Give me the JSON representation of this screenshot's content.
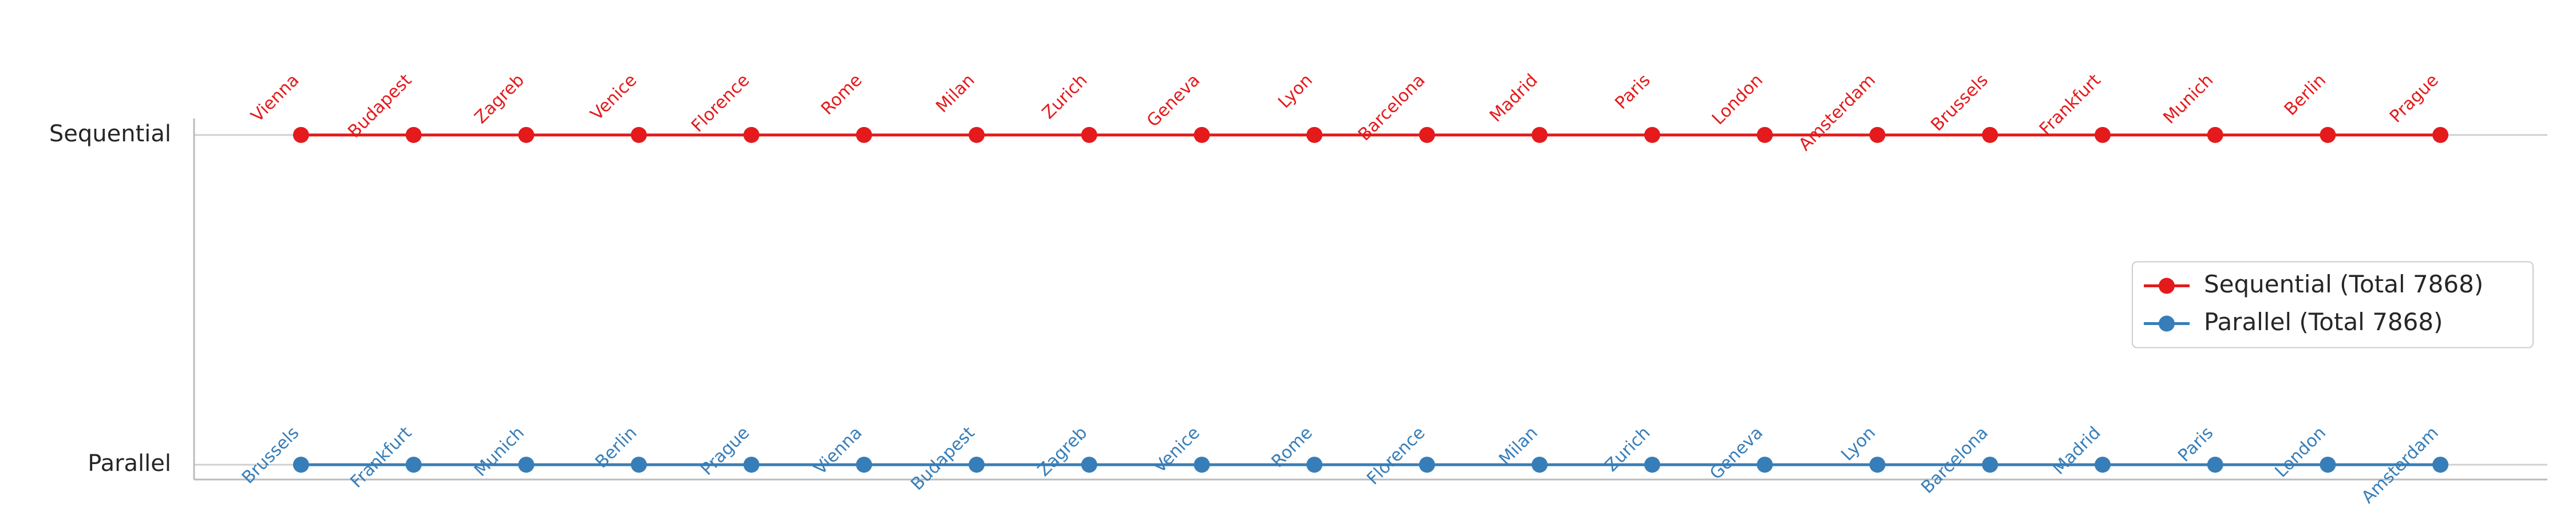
{
  "chart_data": {
    "type": "line",
    "x": [
      0,
      1,
      2,
      3,
      4,
      5,
      6,
      7,
      8,
      9,
      10,
      11,
      12,
      13,
      14,
      15,
      16,
      17,
      18,
      19
    ],
    "xlim": [
      -0.95,
      19.95
    ],
    "ylim": [
      -0.045,
      1.05
    ],
    "yticks": [
      {
        "value": 0,
        "label": "Parallel"
      },
      {
        "value": 1,
        "label": "Sequential"
      }
    ],
    "grid": true,
    "legend": "center right",
    "series": [
      {
        "name": "Sequential (Total 7868)",
        "color": "#e41a1c",
        "values": [
          1,
          1,
          1,
          1,
          1,
          1,
          1,
          1,
          1,
          1,
          1,
          1,
          1,
          1,
          1,
          1,
          1,
          1,
          1,
          1
        ],
        "point_labels": [
          "Vienna",
          "Budapest",
          "Zagreb",
          "Venice",
          "Florence",
          "Rome",
          "Milan",
          "Zurich",
          "Geneva",
          "Lyon",
          "Barcelona",
          "Madrid",
          "Paris",
          "London",
          "Amsterdam",
          "Brussels",
          "Frankfurt",
          "Munich",
          "Berlin",
          "Prague"
        ]
      },
      {
        "name": "Parallel (Total 7868)",
        "color": "#377eb8",
        "values": [
          0,
          0,
          0,
          0,
          0,
          0,
          0,
          0,
          0,
          0,
          0,
          0,
          0,
          0,
          0,
          0,
          0,
          0,
          0,
          0
        ],
        "point_labels": [
          "Brussels",
          "Frankfurt",
          "Munich",
          "Berlin",
          "Prague",
          "Vienna",
          "Budapest",
          "Zagreb",
          "Venice",
          "Rome",
          "Florence",
          "Milan",
          "Zurich",
          "Geneva",
          "Lyon",
          "Barcelona",
          "Madrid",
          "Paris",
          "London",
          "Amsterdam"
        ]
      }
    ]
  }
}
